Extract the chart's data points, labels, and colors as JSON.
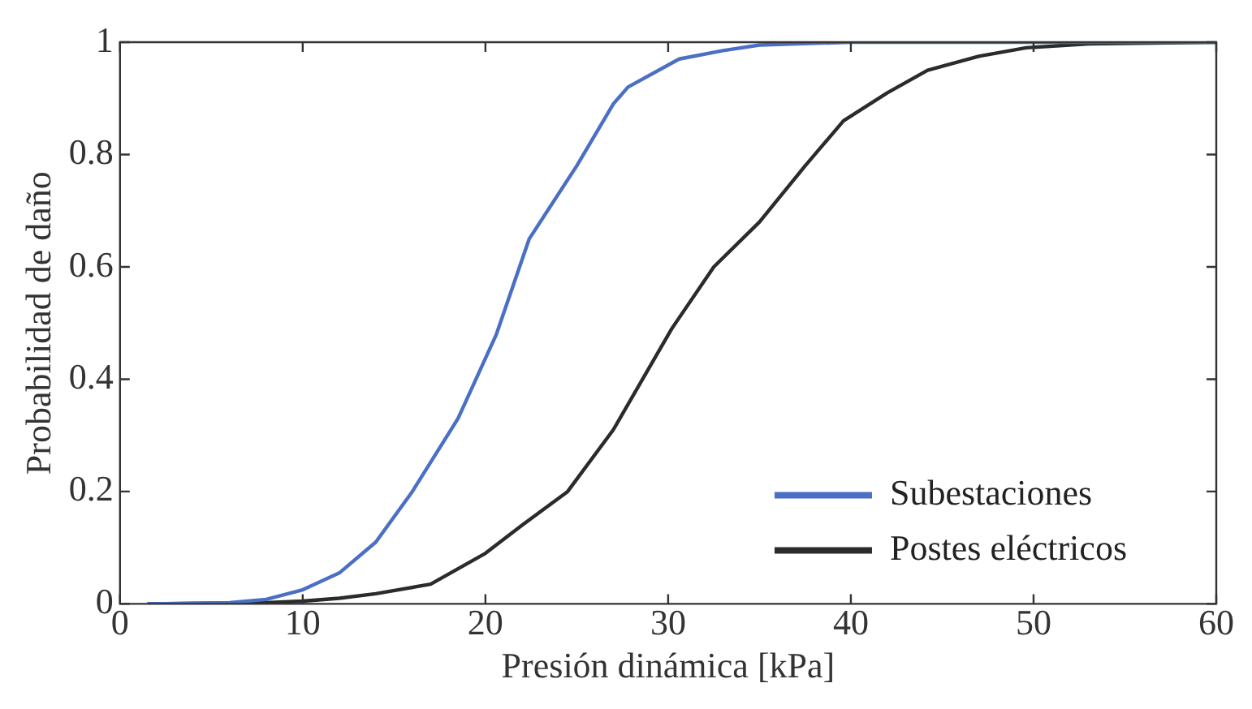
{
  "chart_data": {
    "type": "line",
    "xlabel": "Presión dinámica [kPa]",
    "ylabel": "Probabilidad de daño",
    "xlim": [
      0,
      60
    ],
    "xticks": [
      0,
      10,
      20,
      30,
      40,
      50,
      60
    ],
    "ylim": [
      0,
      1
    ],
    "yticks": [
      0,
      0.2,
      0.4,
      0.6,
      0.8,
      1
    ],
    "grid": false,
    "legend": "bottom right",
    "marker": "none",
    "line_style": "solid",
    "series": [
      {
        "name": "Subestaciones",
        "color": "#4a6fc4",
        "x": [
          1.5,
          6,
          8,
          10,
          12,
          14,
          16,
          18.5,
          20.6,
          22.4,
          25,
          27,
          27.8,
          30.6,
          33,
          35,
          40,
          50,
          60
        ],
        "values": [
          0,
          0.002,
          0.008,
          0.025,
          0.055,
          0.11,
          0.2,
          0.33,
          0.48,
          0.65,
          0.78,
          0.89,
          0.92,
          0.97,
          0.985,
          0.995,
          1,
          1,
          1
        ]
      },
      {
        "name": "Postes eléctricos",
        "color": "#2b2b2b",
        "x": [
          1.5,
          8,
          10,
          12,
          14,
          17,
          20,
          22,
          24.5,
          27,
          30.2,
          32.5,
          35,
          37.5,
          39.6,
          42,
          44.2,
          47,
          49.6,
          53,
          60
        ],
        "values": [
          0,
          0.002,
          0.005,
          0.01,
          0.018,
          0.035,
          0.09,
          0.14,
          0.2,
          0.31,
          0.49,
          0.6,
          0.68,
          0.78,
          0.86,
          0.91,
          0.95,
          0.975,
          0.99,
          0.997,
          1
        ]
      }
    ]
  }
}
